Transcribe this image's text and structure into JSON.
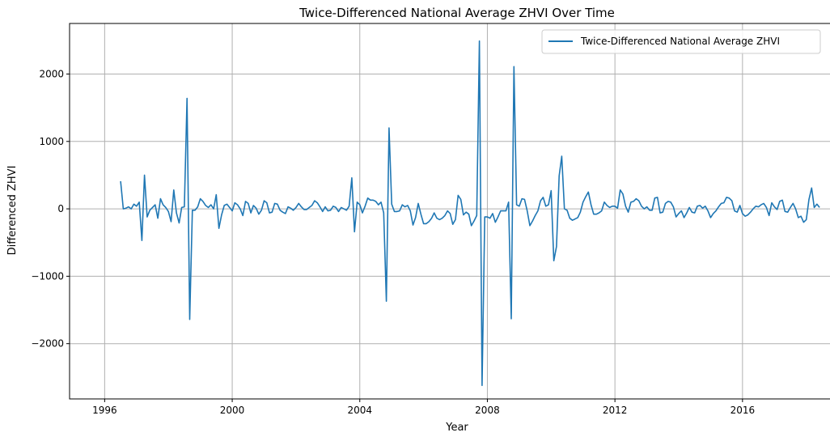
{
  "chart_data": {
    "type": "line",
    "title": "Twice-Differenced National Average ZHVI Over Time",
    "xlabel": "Year",
    "ylabel": "Differenced ZHVI",
    "xlim": [
      1994.9,
      2019.2
    ],
    "ylim": [
      -2820,
      2750
    ],
    "x_ticks": [
      1996,
      2000,
      2004,
      2008,
      2012,
      2016
    ],
    "y_ticks": [
      -2000,
      -1000,
      0,
      1000,
      2000
    ],
    "y_tick_labels": [
      "−2000",
      "−1000",
      "0",
      "1000",
      "2000"
    ],
    "grid": true,
    "legend_position": "top-right",
    "series": [
      {
        "name": "Twice-Differenced National Average ZHVI",
        "color": "#1f77b4",
        "start_year": 1996.5,
        "step_years": 0.0833333,
        "values": [
          410,
          0,
          10,
          30,
          0,
          70,
          40,
          100,
          -470,
          500,
          -120,
          -20,
          20,
          60,
          -140,
          150,
          60,
          20,
          -40,
          -190,
          280,
          -60,
          -210,
          20,
          30,
          1640,
          -1640,
          -20,
          -20,
          30,
          150,
          110,
          50,
          20,
          60,
          0,
          210,
          -290,
          -90,
          50,
          70,
          20,
          -30,
          90,
          60,
          0,
          -100,
          110,
          80,
          -60,
          50,
          10,
          -80,
          -20,
          120,
          90,
          -60,
          -50,
          80,
          70,
          -20,
          -50,
          -70,
          30,
          10,
          -20,
          20,
          80,
          30,
          -10,
          -10,
          20,
          50,
          120,
          90,
          30,
          -40,
          30,
          -30,
          -20,
          40,
          20,
          -40,
          20,
          0,
          -20,
          40,
          460,
          -340,
          100,
          60,
          -60,
          40,
          160,
          130,
          130,
          110,
          60,
          100,
          -60,
          -1370,
          1200,
          70,
          -40,
          -40,
          -30,
          60,
          30,
          50,
          -30,
          -240,
          -130,
          80,
          -80,
          -220,
          -220,
          -190,
          -140,
          -60,
          -140,
          -160,
          -140,
          -100,
          -30,
          -70,
          -230,
          -160,
          200,
          140,
          -90,
          -50,
          -80,
          -250,
          -180,
          -100,
          2490,
          -2620,
          -120,
          -120,
          -140,
          -70,
          -200,
          -120,
          -30,
          -30,
          -30,
          100,
          -1630,
          2110,
          60,
          40,
          150,
          140,
          -30,
          -250,
          -180,
          -100,
          -30,
          120,
          170,
          40,
          60,
          270,
          -770,
          -560,
          490,
          780,
          0,
          -20,
          -140,
          -170,
          -150,
          -130,
          -50,
          100,
          180,
          250,
          60,
          -80,
          -80,
          -60,
          -30,
          100,
          50,
          20,
          40,
          40,
          10,
          280,
          220,
          40,
          -50,
          100,
          110,
          150,
          120,
          40,
          0,
          30,
          -20,
          -20,
          160,
          170,
          -60,
          -50,
          80,
          110,
          100,
          30,
          -120,
          -70,
          -30,
          -130,
          -60,
          20,
          -50,
          -60,
          40,
          50,
          10,
          40,
          -30,
          -130,
          -70,
          -30,
          30,
          80,
          90,
          170,
          160,
          120,
          -30,
          -50,
          50,
          -70,
          -110,
          -90,
          -50,
          0,
          40,
          30,
          60,
          80,
          20,
          -100,
          90,
          30,
          -10,
          110,
          130,
          -40,
          -50,
          20,
          80,
          0,
          -130,
          -110,
          -200,
          -160,
          140,
          310,
          20,
          70,
          20
        ]
      }
    ]
  }
}
